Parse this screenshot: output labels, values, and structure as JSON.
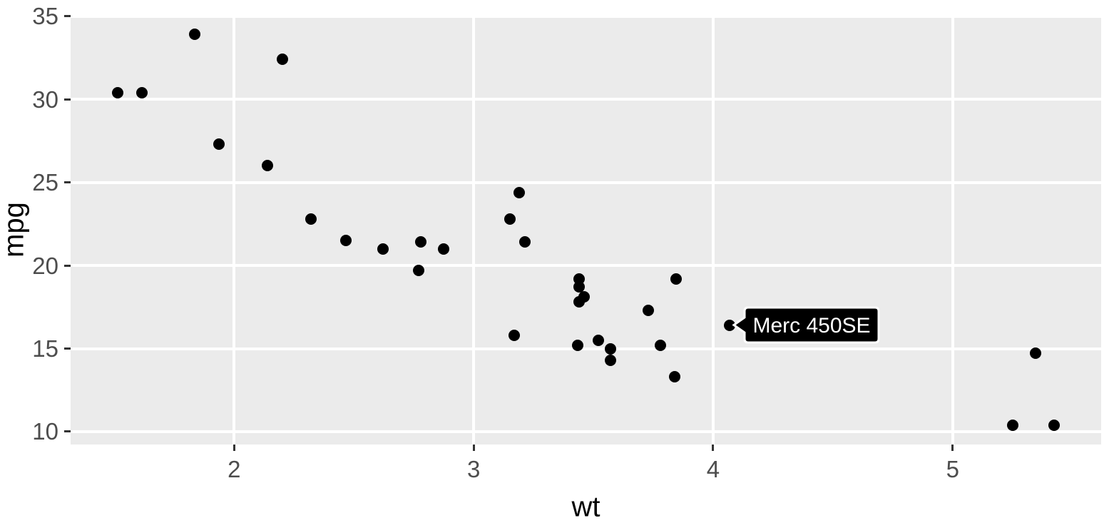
{
  "chart_data": {
    "type": "scatter",
    "title": "",
    "xlabel": "wt",
    "ylabel": "mpg",
    "xlim": [
      1.317,
      5.62
    ],
    "ylim": [
      9.225,
      35.075
    ],
    "x_ticks": [
      2,
      3,
      4,
      5
    ],
    "y_ticks": [
      10,
      15,
      20,
      25,
      30,
      35
    ],
    "grid": "major gridlines only, white on gray panel",
    "legend_position": "none",
    "colors": {
      "panel_background": "#EBEBEB",
      "grid": "#FFFFFF",
      "point": "#000000",
      "tick_mark": "#333333",
      "tick_label": "#4D4D4D",
      "axis_title": "#000000",
      "annotation_fill": "#000000",
      "annotation_border": "#FFFFFF",
      "annotation_text_color": "#FFFFFF"
    },
    "points": [
      [
        2.62,
        21.0
      ],
      [
        2.875,
        21.0
      ],
      [
        2.32,
        22.8
      ],
      [
        3.215,
        21.4
      ],
      [
        3.44,
        18.7
      ],
      [
        3.46,
        18.1
      ],
      [
        3.57,
        14.3
      ],
      [
        3.19,
        24.4
      ],
      [
        3.15,
        22.8
      ],
      [
        3.44,
        19.2
      ],
      [
        3.44,
        17.8
      ],
      [
        4.07,
        16.4
      ],
      [
        3.73,
        17.3
      ],
      [
        3.78,
        15.2
      ],
      [
        5.25,
        10.4
      ],
      [
        5.424,
        10.4
      ],
      [
        5.345,
        14.7
      ],
      [
        2.2,
        32.4
      ],
      [
        1.615,
        30.4
      ],
      [
        1.835,
        33.9
      ],
      [
        2.465,
        21.5
      ],
      [
        3.52,
        15.5
      ],
      [
        3.435,
        15.2
      ],
      [
        3.84,
        13.3
      ],
      [
        3.845,
        19.2
      ],
      [
        1.935,
        27.3
      ],
      [
        2.14,
        26.0
      ],
      [
        1.513,
        30.4
      ],
      [
        3.17,
        15.8
      ],
      [
        2.77,
        19.7
      ],
      [
        3.57,
        15.0
      ],
      [
        2.78,
        21.4
      ]
    ],
    "annotation": {
      "text": "Merc 450SE",
      "x": 4.07,
      "y": 16.4
    }
  }
}
